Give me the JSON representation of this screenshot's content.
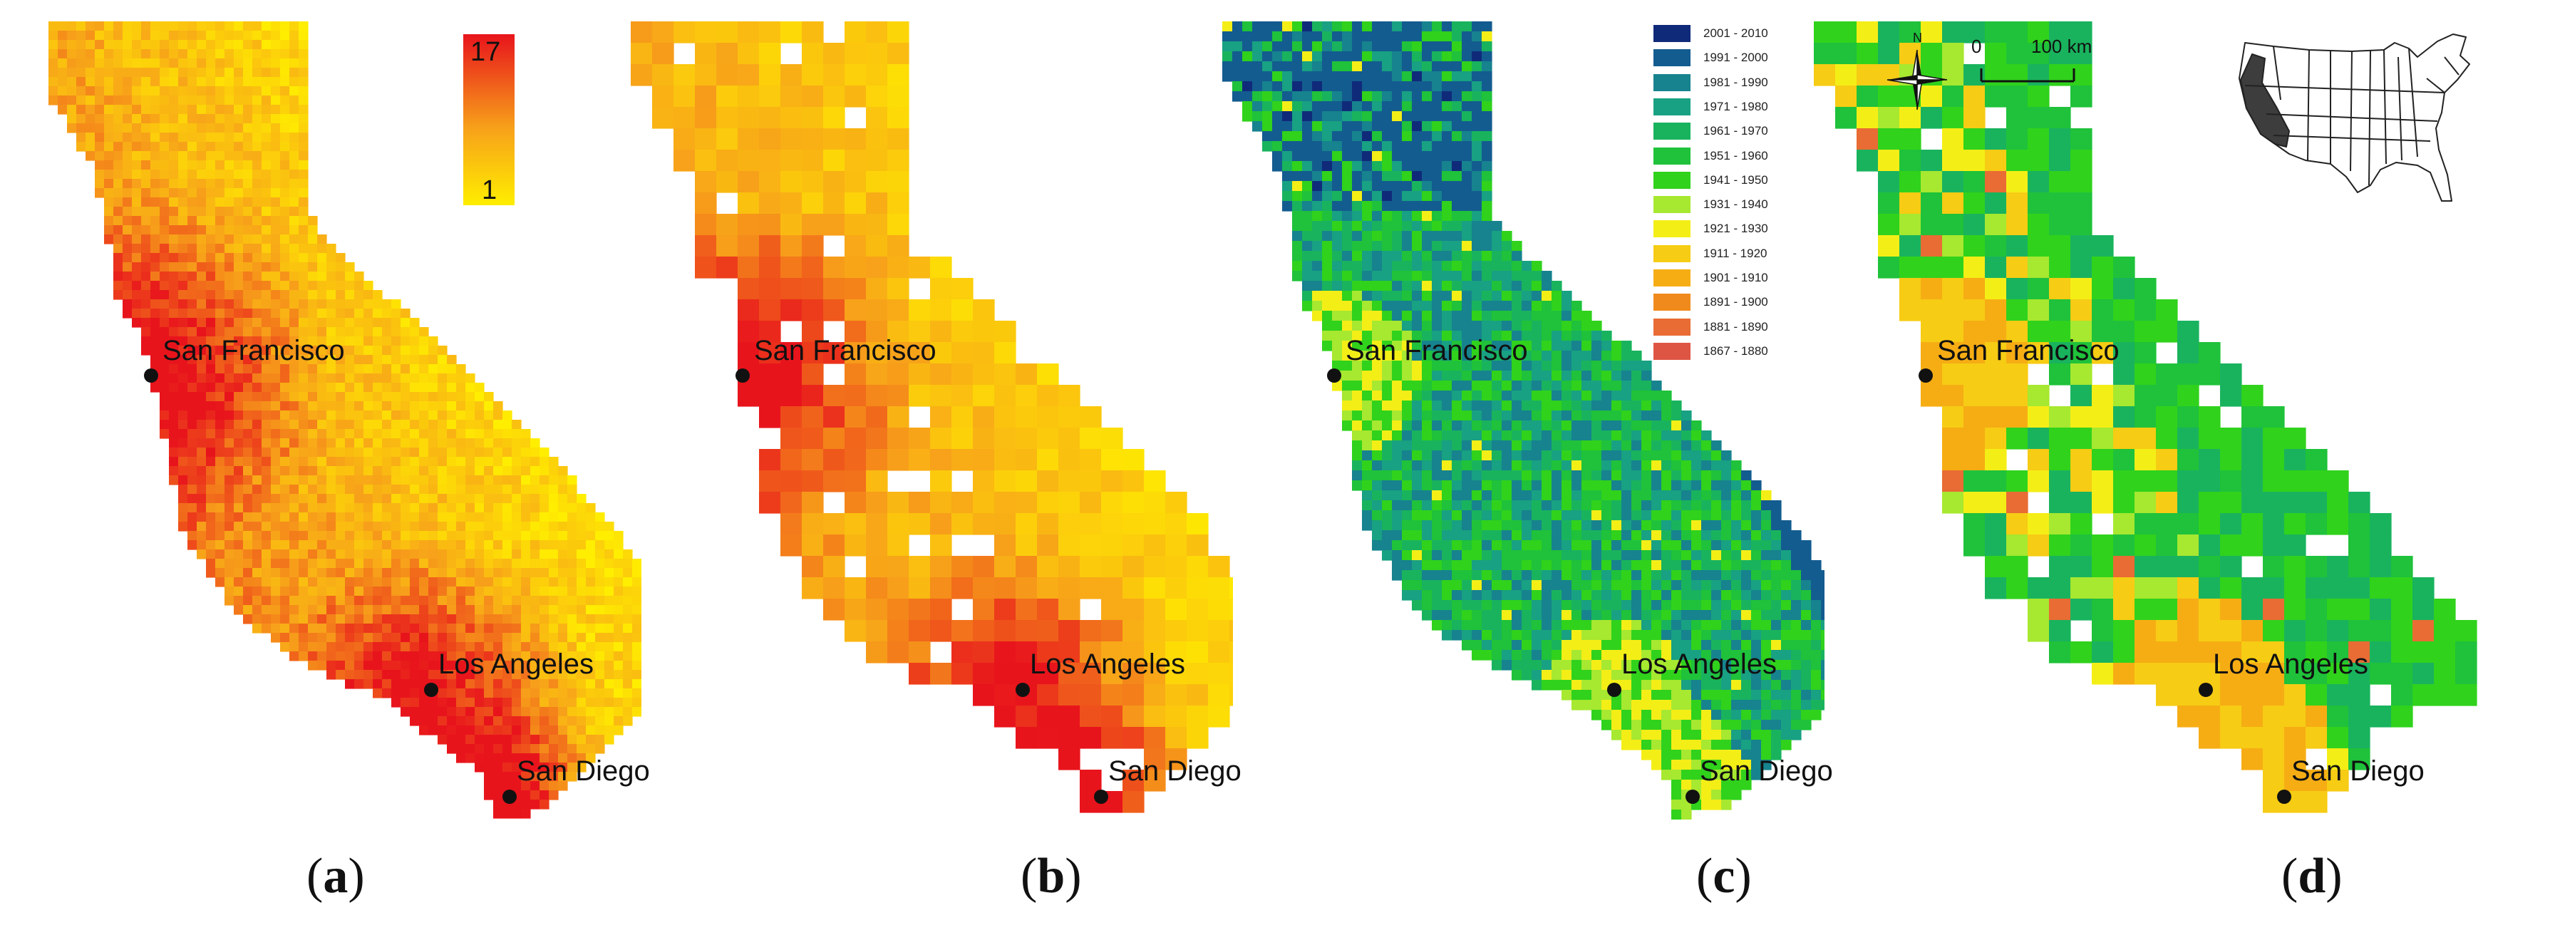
{
  "panels": [
    {
      "id": "a",
      "label": "a",
      "scheme": "heat_dense",
      "seed": 11
    },
    {
      "id": "b",
      "label": "b",
      "scheme": "heat_coarse",
      "seed": 29
    },
    {
      "id": "c",
      "label": "c",
      "scheme": "decade_fine",
      "seed": 47
    },
    {
      "id": "d",
      "label": "d",
      "scheme": "decade_coarse",
      "seed": 71
    }
  ],
  "cities": [
    {
      "name": "San Francisco"
    },
    {
      "name": "Los Angeles"
    },
    {
      "name": "San Diego"
    }
  ],
  "color_scale": {
    "max_label": "17",
    "min_label": "1",
    "low_color": "#ffee00",
    "mid_color": "#f7a11a",
    "high_color": "#e8141c"
  },
  "legend": [
    {
      "label": "2001 - 2010",
      "color": "#102a7a"
    },
    {
      "label": "1991 - 2000",
      "color": "#135c8f"
    },
    {
      "label": "1981 - 1990",
      "color": "#16838e"
    },
    {
      "label": "1971 - 1980",
      "color": "#18a182"
    },
    {
      "label": "1961 - 1970",
      "color": "#19b35e"
    },
    {
      "label": "1951 - 1960",
      "color": "#1fc23a"
    },
    {
      "label": "1941 - 1950",
      "color": "#30d21c"
    },
    {
      "label": "1931 - 1940",
      "color": "#a7e830"
    },
    {
      "label": "1921 - 1930",
      "color": "#f4ee17"
    },
    {
      "label": "1911 - 1920",
      "color": "#f6cc14"
    },
    {
      "label": "1901 - 1910",
      "color": "#f6ad14"
    },
    {
      "label": "1891 - 1900",
      "color": "#f08a1c"
    },
    {
      "label": "1881 - 1890",
      "color": "#e86c34"
    },
    {
      "label": "1867 - 1880",
      "color": "#df5544"
    }
  ],
  "scale_bar": {
    "start": "0",
    "end": "100 km"
  },
  "north_arrow": {
    "letter": "N",
    "icon": "compass-rose-icon"
  },
  "inset": {
    "icon": "usa-locator-map-icon",
    "highlight_color": "#444444"
  }
}
